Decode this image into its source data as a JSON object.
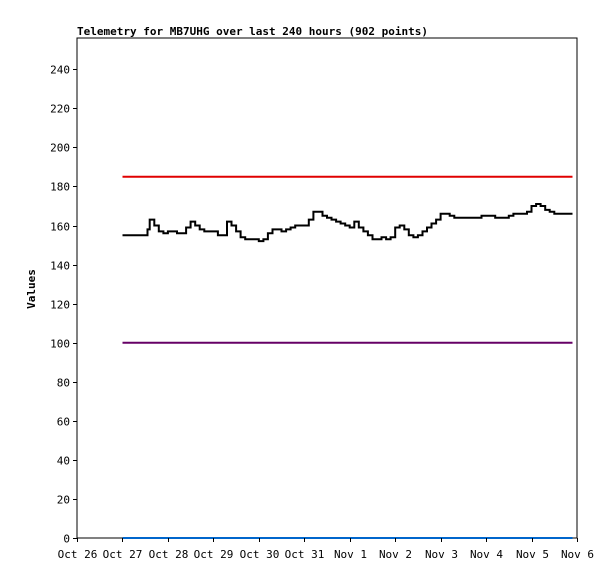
{
  "chart_data": {
    "type": "line",
    "title": "Telemetry for MB7UHG over last 240 hours (902 points)",
    "xlabel": "",
    "ylabel": "Values",
    "ylim": [
      0,
      256
    ],
    "xlim": [
      "Oct 26",
      "Nov 6"
    ],
    "x_ticks": [
      "Oct 26",
      "Oct 27",
      "Oct 28",
      "Oct 29",
      "Oct 30",
      "Oct 31",
      "Nov 1",
      "Nov 2",
      "Nov 3",
      "Nov 4",
      "Nov 5",
      "Nov 6"
    ],
    "y_ticks": [
      0,
      20,
      40,
      60,
      80,
      100,
      120,
      140,
      160,
      180,
      200,
      220,
      240
    ],
    "grid": false,
    "colors": {
      "upper_limit": "#e00000",
      "lower_limit": "#660066",
      "telemetry": "#000000",
      "baseline": "#0066cc"
    },
    "series": [
      {
        "key": "upper_limit",
        "x": [
          1.0,
          10.9
        ],
        "y": [
          185,
          185
        ]
      },
      {
        "key": "telemetry",
        "x": [
          1.0,
          1.1,
          1.2,
          1.3,
          1.4,
          1.5,
          1.55,
          1.6,
          1.7,
          1.8,
          1.9,
          2.0,
          2.1,
          2.2,
          2.3,
          2.4,
          2.5,
          2.6,
          2.7,
          2.8,
          2.9,
          3.0,
          3.1,
          3.2,
          3.3,
          3.4,
          3.5,
          3.6,
          3.7,
          3.8,
          3.9,
          4.0,
          4.1,
          4.2,
          4.3,
          4.4,
          4.5,
          4.6,
          4.7,
          4.8,
          4.9,
          5.0,
          5.1,
          5.2,
          5.3,
          5.4,
          5.5,
          5.6,
          5.7,
          5.8,
          5.9,
          6.0,
          6.1,
          6.2,
          6.3,
          6.4,
          6.5,
          6.6,
          6.7,
          6.8,
          6.9,
          7.0,
          7.1,
          7.2,
          7.3,
          7.4,
          7.5,
          7.6,
          7.7,
          7.8,
          7.9,
          8.0,
          8.1,
          8.2,
          8.3,
          8.4,
          8.5,
          8.6,
          8.7,
          8.8,
          8.9,
          9.0,
          9.1,
          9.2,
          9.3,
          9.4,
          9.5,
          9.6,
          9.7,
          9.8,
          9.9,
          10.0,
          10.1,
          10.2,
          10.3,
          10.4,
          10.5,
          10.6,
          10.7,
          10.8,
          10.9
        ],
        "y": [
          155,
          155,
          155,
          155,
          155,
          155,
          158,
          163,
          160,
          157,
          156,
          157,
          157,
          156,
          156,
          159,
          162,
          160,
          158,
          157,
          157,
          157,
          155,
          155,
          162,
          160,
          157,
          154,
          153,
          153,
          153,
          152,
          153,
          156,
          158,
          158,
          157,
          158,
          159,
          160,
          160,
          160,
          163,
          167,
          167,
          165,
          164,
          163,
          162,
          161,
          160,
          159,
          162,
          159,
          157,
          155,
          153,
          153,
          154,
          153,
          154,
          159,
          160,
          158,
          155,
          154,
          155,
          157,
          159,
          161,
          163,
          166,
          166,
          165,
          164,
          164,
          164,
          164,
          164,
          164,
          165,
          165,
          165,
          164,
          164,
          164,
          165,
          166,
          166,
          166,
          167,
          170,
          171,
          170,
          168,
          167,
          166,
          166,
          166,
          166,
          166
        ]
      },
      {
        "key": "lower_limit",
        "x": [
          1.0,
          10.9
        ],
        "y": [
          100,
          100
        ]
      },
      {
        "key": "baseline",
        "x": [
          1.0,
          10.9
        ],
        "y": [
          0,
          0
        ]
      }
    ]
  }
}
